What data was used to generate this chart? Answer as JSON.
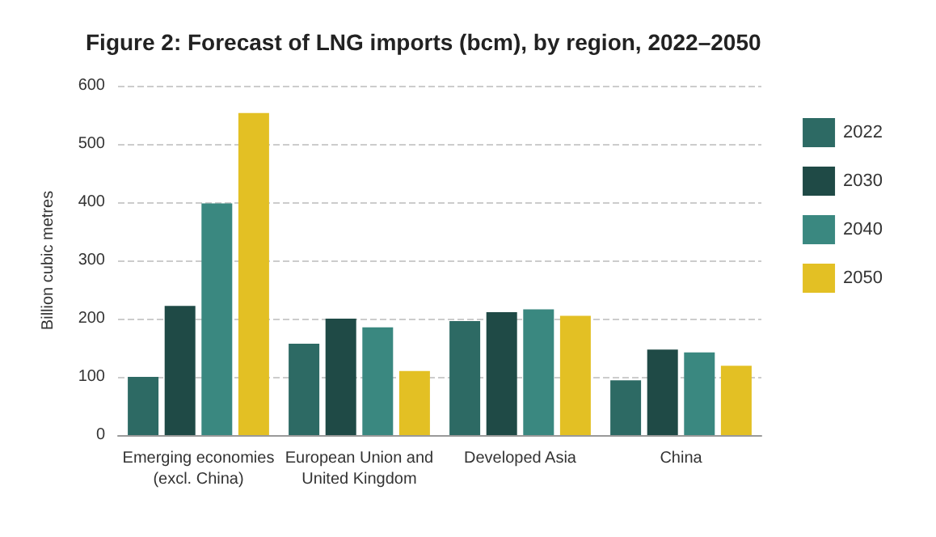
{
  "chart_data": {
    "type": "bar",
    "title": "Figure 2: Forecast of LNG imports (bcm), by region, 2022–2050",
    "ylabel": "Billion cubic metres",
    "categories": [
      "Emerging economies\n(excl. China)",
      "European Union and\nUnited Kingdom",
      "Developed Asia",
      "China"
    ],
    "series": [
      {
        "name": "2022",
        "color": "#2d6a64",
        "values": [
          100,
          157,
          196,
          94
        ]
      },
      {
        "name": "2030",
        "color": "#1f4a46",
        "values": [
          222,
          200,
          211,
          147
        ]
      },
      {
        "name": "2040",
        "color": "#3a8880",
        "values": [
          398,
          185,
          216,
          142
        ]
      },
      {
        "name": "2050",
        "color": "#e3c024",
        "values": [
          553,
          110,
          205,
          119
        ]
      }
    ],
    "ylim": [
      0,
      600
    ],
    "yticks": [
      0,
      100,
      200,
      300,
      400,
      500,
      600
    ],
    "grid": "y",
    "legend": "right"
  }
}
